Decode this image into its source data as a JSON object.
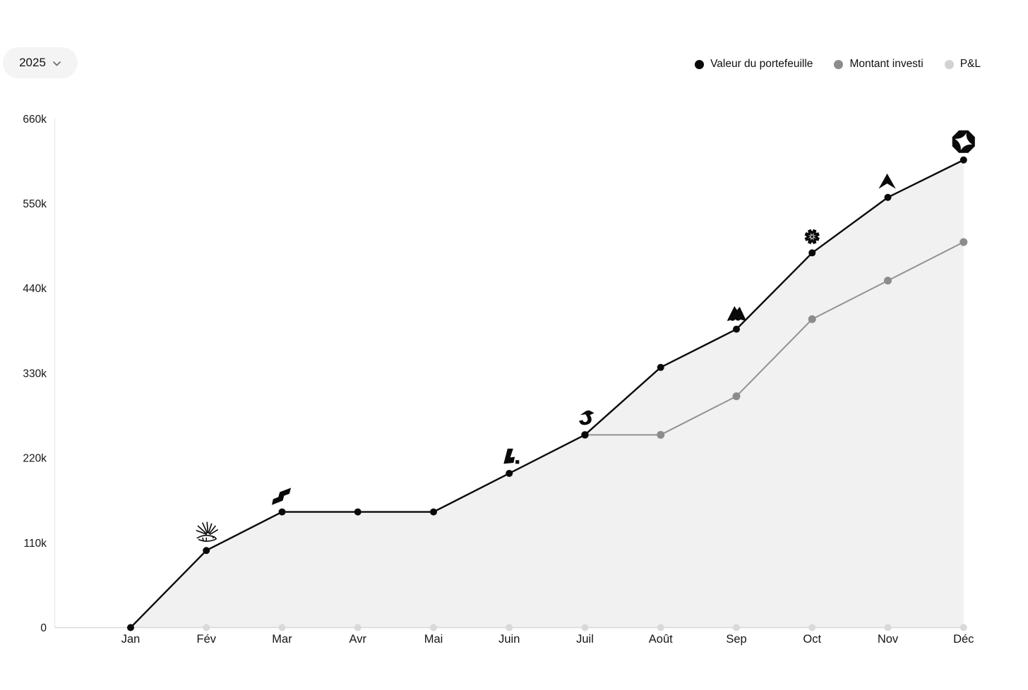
{
  "header": {
    "year": "2025"
  },
  "legend": {
    "items": [
      {
        "label": "Valeur du portefeuille",
        "color": "#0a0a0a"
      },
      {
        "label": "Montant investi",
        "color": "#8c8c8c"
      },
      {
        "label": "P&L",
        "color": "#d2d2d2"
      }
    ]
  },
  "chart_data": {
    "type": "line",
    "title": "",
    "categories": [
      "Jan",
      "Fév",
      "Mar",
      "Avr",
      "Mai",
      "Juin",
      "Juil",
      "Août",
      "Sep",
      "Oct",
      "Nov",
      "Déc"
    ],
    "y_axis": {
      "ticks": [
        {
          "label": "0",
          "value": 0
        },
        {
          "label": "110k",
          "value": 110000
        },
        {
          "label": "220k",
          "value": 220000
        },
        {
          "label": "330k",
          "value": 330000
        },
        {
          "label": "440k",
          "value": 440000
        },
        {
          "label": "550k",
          "value": 550000
        },
        {
          "label": "660k",
          "value": 660000
        }
      ],
      "range": [
        0,
        660000
      ]
    },
    "series": [
      {
        "name": "Valeur du portefeuille",
        "color": "#0a0a0a",
        "area_fill": "#f1f1f1",
        "values": [
          0,
          100000,
          150000,
          150000,
          150000,
          200000,
          250000,
          337500,
          387000,
          486000,
          558000,
          606500
        ]
      },
      {
        "name": "Montant investi",
        "color": "#8c8c8c",
        "values": [
          null,
          null,
          null,
          null,
          null,
          null,
          250000,
          250000,
          300000,
          400000,
          450000,
          500000
        ]
      },
      {
        "name": "P&L",
        "color": "#d9d9d9",
        "values": [
          0,
          0,
          0,
          0,
          0,
          0,
          0,
          0,
          0,
          0,
          0,
          0
        ]
      }
    ],
    "markers": [
      {
        "month": "Fév",
        "icon": "porcupine-sketch"
      },
      {
        "month": "Mar",
        "icon": "double-parallelogram"
      },
      {
        "month": "Juin",
        "icon": "letter-l-logo"
      },
      {
        "month": "Juil",
        "icon": "bird-logo"
      },
      {
        "month": "Sep",
        "icon": "mountain-logo"
      },
      {
        "month": "Oct",
        "icon": "snowflake-logo"
      },
      {
        "month": "Nov",
        "icon": "stealth-arrow-logo"
      },
      {
        "month": "Déc",
        "icon": "octagon-star-logo"
      }
    ],
    "legend_position": "top-right",
    "grid": false
  }
}
